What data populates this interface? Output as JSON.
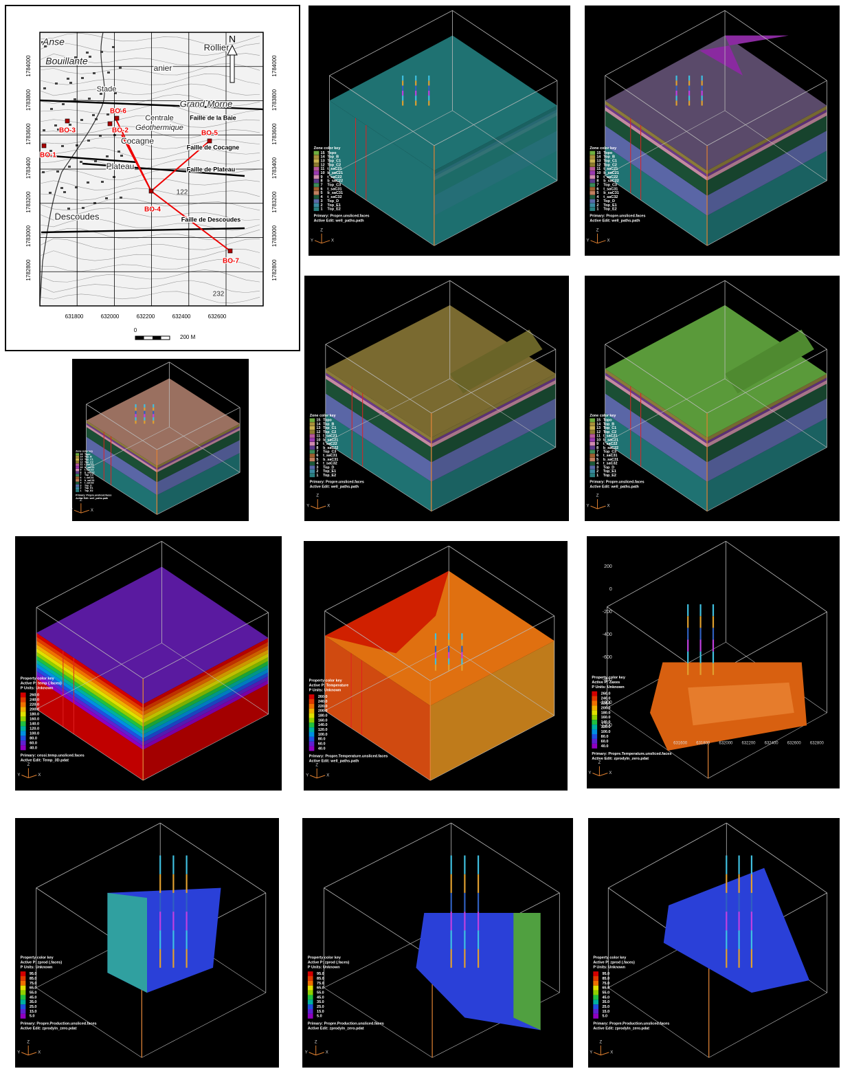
{
  "map": {
    "places": [
      "Rollier",
      "Grand Morne",
      "anier",
      "Stade",
      "Centrale",
      "Géothermique",
      "Cocagne",
      "Plateau",
      "Descoudes",
      "Anse",
      "Bouillante"
    ],
    "faults": [
      "Faille de la Baie",
      "Faille de Cocagne",
      "Faille de Plateau",
      "Faille de Descoudes"
    ],
    "wells": [
      "BO-6",
      "BO-3",
      "BO-2",
      "BO-5",
      "BO-1",
      "BO-4",
      "BO-7"
    ],
    "spot_heights": [
      "122",
      "232"
    ],
    "north": "N",
    "x_ticks": [
      "631800",
      "632000",
      "632200",
      "632400",
      "632600"
    ],
    "y_ticks": [
      "1784000",
      "1783800",
      "1783600",
      "1783400",
      "1783200",
      "1783000",
      "1782800"
    ],
    "scale": [
      "0",
      "200 M"
    ]
  },
  "triad": [
    "Z",
    "Y",
    "X"
  ],
  "zone_key": [
    {
      "num": "15",
      "name": "Topo",
      "color": "#6fae3f"
    },
    {
      "num": "14",
      "name": "Top_B",
      "color": "#a8913c"
    },
    {
      "num": "13",
      "name": "Top_C1",
      "color": "#c9b250"
    },
    {
      "num": "12",
      "name": "Top_C2",
      "color": "#8c7a2f"
    },
    {
      "num": "11",
      "name": "t_saC21",
      "color": "#b85a9a"
    },
    {
      "num": "10",
      "name": "b_saC21",
      "color": "#9a3ab0"
    },
    {
      "num": "9",
      "name": "t_saC22",
      "color": "#d08cb0"
    },
    {
      "num": "8",
      "name": "b_saC22",
      "color": "#5a3a8a"
    },
    {
      "num": "7",
      "name": "Top_C3",
      "color": "#3a8a5a"
    },
    {
      "num": "6",
      "name": "t_saC31",
      "color": "#a06030"
    },
    {
      "num": "5",
      "name": "b_saC31",
      "color": "#c08060"
    },
    {
      "num": "4",
      "name": "t_saC32",
      "color": "#1e5a3a"
    },
    {
      "num": "3",
      "name": "Top_D",
      "color": "#5a6aa8"
    },
    {
      "num": "2",
      "name": "Top_E1",
      "color": "#3a8aa0"
    },
    {
      "num": "1",
      "name": "Top_E2",
      "color": "#2a7f7f"
    }
  ],
  "temp_key": [
    "260.0",
    "240.0",
    "220.0",
    "200.0",
    "180.0",
    "160.0",
    "140.0",
    "120.0",
    "100.0",
    "80.0",
    "60.0",
    "40.0"
  ],
  "prod_key": [
    "95.0",
    "85.0",
    "75.0",
    "65.0",
    "55.0",
    "45.0",
    "35.0",
    "25.0",
    "15.0",
    "5.0"
  ],
  "panels": [
    {
      "title": "Zone color key",
      "primary": "Primary: Propre.unsliced.faces",
      "active_edit": "Active Edit: well_paths.path"
    },
    {
      "title": "Zone color key",
      "primary": "Primary: Propre.unsliced.faces",
      "active_edit": "Active Edit: well_paths.path"
    },
    {
      "title": "Zone color key",
      "primary": "Primary: Propre.unsliced.faces",
      "active_edit": "Active Edit: well_paths.path"
    },
    {
      "title": "Zone color key",
      "primary": "Primary: Propre.unsliced.faces",
      "active_edit": "Active Edit: well_paths.path"
    },
    {
      "title": "Zone color key",
      "primary": "Primary: Propre.unsliced.faces",
      "active_edit": "Active Edit: well_paths.path"
    },
    {
      "title": "Property color key",
      "active_p": "Active P: temp (.faces)",
      "p_units": "P Units: Unknown",
      "primary": "Primary: cessi.temp.unsliced.faces",
      "active_edit": "Active Edit: Temp_3D.pdat"
    },
    {
      "title": "Property color key",
      "active_p": "Active P: Temperature",
      "p_units": "P Units: Unknown",
      "primary": "Primary: Propre.Temperature.unsliced.faces",
      "active_edit": "Active Edit: well_paths.path"
    },
    {
      "title": "Property color key",
      "active_p": "Active P: Zaxes",
      "p_units": "P Units: Unknown",
      "primary": "Primary: Propre.Temperature.unsliced.faces",
      "active_edit": "Active Edit: zprodyln_zero.pdat",
      "y_axis": [
        "200",
        "0",
        "-200",
        "-400",
        "-600",
        "-800",
        "-1000",
        "-1200"
      ],
      "x_axis": [
        "631600",
        "631800",
        "632000",
        "632200",
        "632400",
        "632600",
        "632800"
      ]
    },
    {
      "title": "Property color key",
      "active_p": "Active P: zprod (.faces)",
      "p_units": "P Units: Unknown",
      "primary": "Primary: Propre.Production.unsliced.faces",
      "active_edit": "Active Edit: zprodyln_zero.pdat"
    },
    {
      "title": "Property color key",
      "active_p": "Active P: zprod (.faces)",
      "p_units": "P Units: Unknown",
      "primary": "Primary: Propre.Production.unsliced.faces",
      "active_edit": "Active Edit: zprodyln_zero.pdat"
    },
    {
      "title": "Property color key",
      "active_p": "Active P: zprod (.faces)",
      "p_units": "P Units: Unknown",
      "primary": "Primary: Propre.Production.unsliced.faces",
      "active_edit": "Active Edit: zprodyln_zero.pdat"
    }
  ]
}
